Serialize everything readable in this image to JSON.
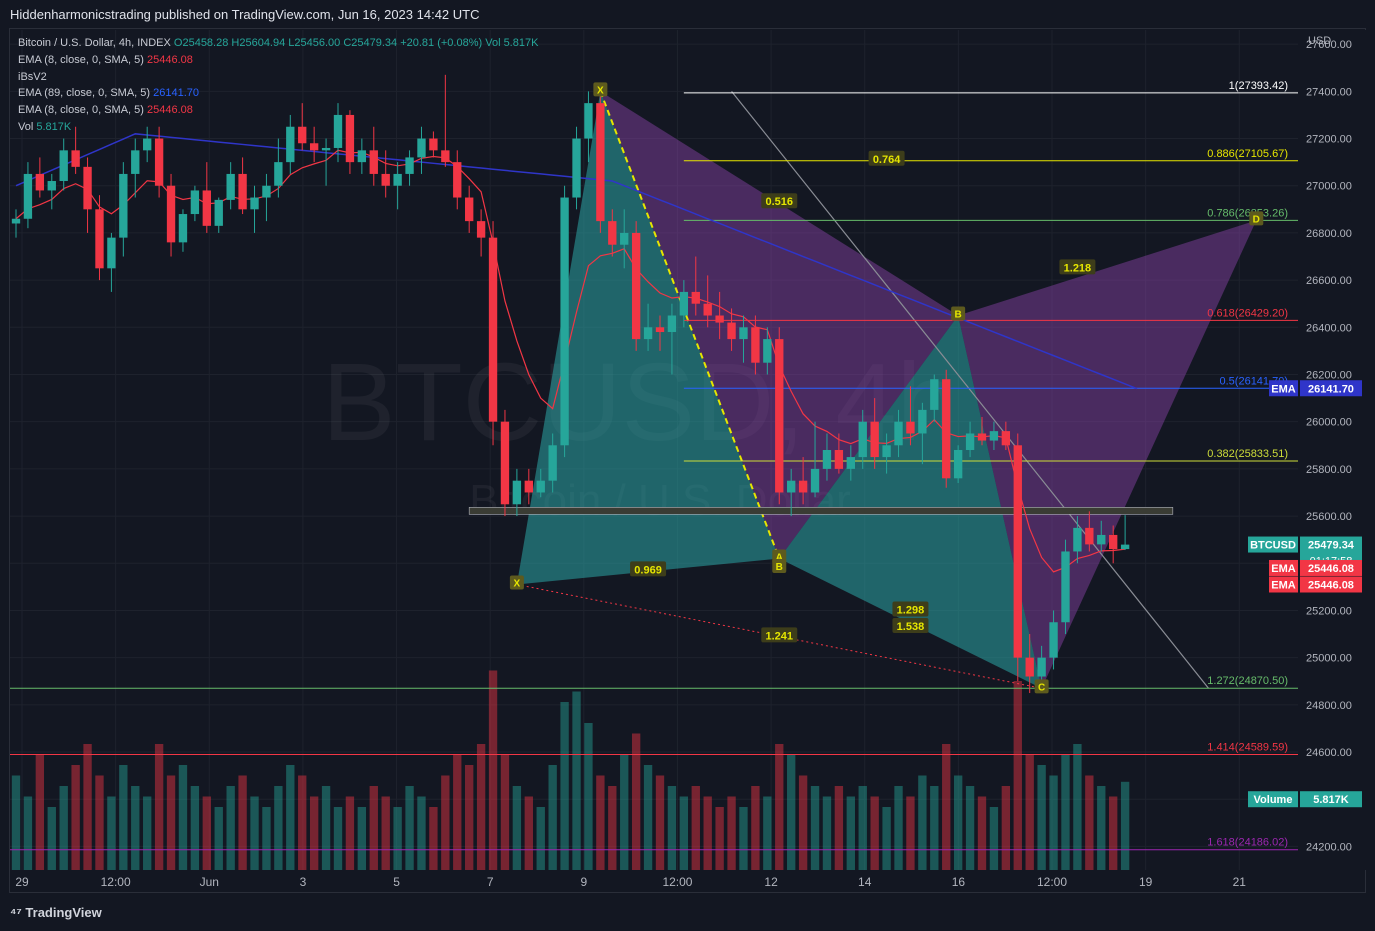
{
  "header": {
    "published": "Hiddenharmonicstrading published on TradingView.com, Jun 16, 2023 14:42 UTC"
  },
  "legend": {
    "symbol": "Bitcoin / U.S. Dollar, 4h, INDEX",
    "ohlc": "O25458.28 H25604.94 L25456.00 C25479.34 +20.81 (+0.08%) Vol 5.817K",
    "ema8_label": "EMA (8, close, 0, SMA, 5)",
    "ema8_value": "25446.08",
    "ibs": "iBsV2",
    "ema89_label": "EMA (89, close, 0, SMA, 5)",
    "ema89_value": "26141.70",
    "ema8b_label": "EMA (8, close, 0, SMA, 5)",
    "ema8b_value": "25446.08",
    "vol_label": "Vol",
    "vol_value": "5.817K"
  },
  "footer": {
    "brand": "TradingView"
  },
  "watermark": {
    "big": "BTCUSD, 4h",
    "small": "Bitcoin / U.S. Dollar"
  },
  "colors": {
    "up": "#26a69a",
    "down": "#f23645",
    "bg": "#131722",
    "grid": "#1e222d",
    "ema89": "#2f35c9",
    "ema8": "#f23645",
    "pattern_purple": "#8e44ad",
    "pattern_teal": "#2ba6a6"
  },
  "chart_data": {
    "type": "candlestick",
    "currency": "USD",
    "y_ticks": [
      24200,
      24400,
      24600,
      24800,
      25000,
      25200,
      25400,
      25600,
      25800,
      26000,
      26200,
      26400,
      26600,
      26800,
      27000,
      27200,
      27400,
      27600
    ],
    "x_ticks": [
      "29",
      "12:00",
      "Jun",
      "3",
      "5",
      "7",
      "9",
      "12:00",
      "12",
      "14",
      "16",
      "12:00",
      "19",
      "21"
    ],
    "candles": [
      [
        26840,
        26900,
        26780,
        26860
      ],
      [
        26860,
        27100,
        26820,
        27050
      ],
      [
        27050,
        27120,
        26950,
        26980
      ],
      [
        26980,
        27050,
        26900,
        27020
      ],
      [
        27020,
        27200,
        26980,
        27150
      ],
      [
        27150,
        27250,
        27050,
        27080
      ],
      [
        27080,
        27120,
        26800,
        26900
      ],
      [
        26900,
        26960,
        26600,
        26650
      ],
      [
        26650,
        26800,
        26550,
        26780
      ],
      [
        26780,
        27100,
        26700,
        27050
      ],
      [
        27050,
        27200,
        26950,
        27150
      ],
      [
        27150,
        27250,
        27100,
        27200
      ],
      [
        27200,
        27250,
        26950,
        27000
      ],
      [
        27000,
        27050,
        26700,
        26760
      ],
      [
        26760,
        26900,
        26720,
        26880
      ],
      [
        26880,
        27000,
        26850,
        26980
      ],
      [
        26980,
        27100,
        26800,
        26830
      ],
      [
        26830,
        26950,
        26800,
        26940
      ],
      [
        26940,
        27100,
        26900,
        27050
      ],
      [
        27050,
        27120,
        26880,
        26900
      ],
      [
        26900,
        27000,
        26800,
        26950
      ],
      [
        26950,
        27050,
        26850,
        27000
      ],
      [
        27000,
        27200,
        26950,
        27100
      ],
      [
        27100,
        27300,
        27050,
        27250
      ],
      [
        27250,
        27350,
        27150,
        27180
      ],
      [
        27180,
        27250,
        27100,
        27150
      ],
      [
        27150,
        27200,
        27000,
        27160
      ],
      [
        27160,
        27350,
        27100,
        27300
      ],
      [
        27300,
        27320,
        27050,
        27100
      ],
      [
        27100,
        27200,
        27050,
        27150
      ],
      [
        27150,
        27250,
        27000,
        27050
      ],
      [
        27050,
        27150,
        26950,
        27000
      ],
      [
        27000,
        27100,
        26900,
        27050
      ],
      [
        27050,
        27150,
        27000,
        27120
      ],
      [
        27120,
        27250,
        27050,
        27200
      ],
      [
        27200,
        27230,
        27120,
        27150
      ],
      [
        27150,
        27470,
        27080,
        27100
      ],
      [
        27100,
        27150,
        26900,
        26950
      ],
      [
        26950,
        27000,
        26800,
        26850
      ],
      [
        26850,
        26900,
        26700,
        26780
      ],
      [
        26780,
        26850,
        25900,
        26000
      ],
      [
        26000,
        26050,
        25600,
        25650
      ],
      [
        25650,
        25800,
        25600,
        25750
      ],
      [
        25750,
        25800,
        25650,
        25700
      ],
      [
        25700,
        25800,
        25680,
        25750
      ],
      [
        25750,
        25950,
        25700,
        25900
      ],
      [
        25900,
        27000,
        25850,
        26950
      ],
      [
        26950,
        27250,
        26900,
        27200
      ],
      [
        27200,
        27400,
        27100,
        27350
      ],
      [
        27350,
        27380,
        26800,
        26850
      ],
      [
        26850,
        26900,
        26700,
        26750
      ],
      [
        26750,
        26900,
        26650,
        26800
      ],
      [
        26800,
        26850,
        26300,
        26350
      ],
      [
        26350,
        26500,
        26300,
        26400
      ],
      [
        26400,
        26450,
        26300,
        26380
      ],
      [
        26380,
        26500,
        26200,
        26450
      ],
      [
        26450,
        26600,
        26400,
        26550
      ],
      [
        26550,
        26700,
        26450,
        26500
      ],
      [
        26500,
        26620,
        26400,
        26450
      ],
      [
        26450,
        26550,
        26350,
        26420
      ],
      [
        26420,
        26480,
        26300,
        26350
      ],
      [
        26350,
        26450,
        26250,
        26400
      ],
      [
        26400,
        26450,
        26200,
        26250
      ],
      [
        26250,
        26400,
        26200,
        26350
      ],
      [
        26350,
        26400,
        25650,
        25700
      ],
      [
        25700,
        25800,
        25600,
        25750
      ],
      [
        25750,
        25850,
        25650,
        25700
      ],
      [
        25700,
        26000,
        25680,
        25800
      ],
      [
        25800,
        25950,
        25750,
        25880
      ],
      [
        25880,
        25950,
        25780,
        25800
      ],
      [
        25800,
        25900,
        25750,
        25850
      ],
      [
        25850,
        26050,
        25800,
        26000
      ],
      [
        26000,
        26100,
        25800,
        25850
      ],
      [
        25850,
        25950,
        25780,
        25900
      ],
      [
        25900,
        26050,
        25850,
        26000
      ],
      [
        26000,
        26150,
        25900,
        25950
      ],
      [
        25950,
        26080,
        25820,
        26050
      ],
      [
        26050,
        26200,
        26000,
        26180
      ],
      [
        26180,
        26220,
        25720,
        25760
      ],
      [
        25760,
        25900,
        25740,
        25880
      ],
      [
        25880,
        26000,
        25850,
        25950
      ],
      [
        25950,
        26020,
        25900,
        25920
      ],
      [
        25920,
        26000,
        25880,
        25960
      ],
      [
        25960,
        26000,
        25880,
        25900
      ],
      [
        25900,
        25950,
        24900,
        25000
      ],
      [
        25000,
        25100,
        24850,
        24920
      ],
      [
        24920,
        25050,
        24880,
        25000
      ],
      [
        25000,
        25200,
        24950,
        25150
      ],
      [
        25150,
        25500,
        25100,
        25450
      ],
      [
        25450,
        25600,
        25400,
        25550
      ],
      [
        25550,
        25620,
        25450,
        25480
      ],
      [
        25480,
        25580,
        25450,
        25520
      ],
      [
        25520,
        25560,
        25400,
        25460
      ],
      [
        25460,
        25604,
        25456,
        25479
      ]
    ],
    "volumes": [
      0.45,
      0.35,
      0.55,
      0.3,
      0.4,
      0.5,
      0.6,
      0.45,
      0.35,
      0.5,
      0.4,
      0.35,
      0.6,
      0.45,
      0.5,
      0.4,
      0.35,
      0.3,
      0.4,
      0.45,
      0.35,
      0.3,
      0.4,
      0.5,
      0.45,
      0.35,
      0.4,
      0.3,
      0.35,
      0.3,
      0.4,
      0.35,
      0.3,
      0.4,
      0.35,
      0.3,
      0.45,
      0.55,
      0.5,
      0.6,
      0.95,
      0.55,
      0.4,
      0.35,
      0.3,
      0.5,
      0.8,
      0.85,
      0.7,
      0.45,
      0.4,
      0.55,
      0.65,
      0.5,
      0.45,
      0.4,
      0.35,
      0.4,
      0.35,
      0.3,
      0.35,
      0.3,
      0.4,
      0.35,
      0.6,
      0.55,
      0.45,
      0.4,
      0.35,
      0.4,
      0.35,
      0.4,
      0.35,
      0.3,
      0.4,
      0.35,
      0.45,
      0.4,
      0.6,
      0.45,
      0.4,
      0.35,
      0.3,
      0.4,
      0.9,
      0.55,
      0.5,
      0.45,
      0.55,
      0.6,
      0.45,
      0.4,
      0.35,
      0.42
    ],
    "fib_levels": [
      {
        "label": "1(27393.42)",
        "price": 27393.42,
        "color": "#ffffff"
      },
      {
        "label": "0.886(27105.67)",
        "price": 27105.67,
        "color": "#e6e600"
      },
      {
        "label": "0.786(26853.26)",
        "price": 26853.26,
        "color": "#66bb6a"
      },
      {
        "label": "0.618(26429.20)",
        "price": 26429.2,
        "color": "#f23645"
      },
      {
        "label": "0.5(26141.70)",
        "price": 26141.7,
        "color": "#2962ff"
      },
      {
        "label": "0.382(25833.51)",
        "price": 25833.51,
        "color": "#cddc39"
      },
      {
        "label": "1.272(24870.50)",
        "price": 24870.5,
        "color": "#66bb6a"
      },
      {
        "label": "1.414(24589.59)",
        "price": 24589.59,
        "color": "#f23645"
      },
      {
        "label": "1.618(24186.02)",
        "price": 24186.02,
        "color": "#9c27b0"
      }
    ],
    "pattern_labels": [
      {
        "text": "X",
        "idx": 49,
        "price": 27400
      },
      {
        "text": "A",
        "idx": 64,
        "price": 25420
      },
      {
        "text": "B",
        "idx": 79,
        "price": 26450
      },
      {
        "text": "C",
        "idx": 86,
        "price": 24870
      },
      {
        "text": "D",
        "idx": 104,
        "price": 26853
      },
      {
        "text": "X",
        "idx": 42,
        "price": 25310
      },
      {
        "text": "B",
        "idx": 64,
        "price": 25380
      }
    ],
    "ratio_labels": [
      {
        "text": "0.764",
        "idx": 73,
        "price": 27110
      },
      {
        "text": "0.516",
        "idx": 64,
        "price": 26930
      },
      {
        "text": "1.218",
        "idx": 89,
        "price": 26650
      },
      {
        "text": "1.298",
        "idx": 75,
        "price": 25200
      },
      {
        "text": "0.969",
        "idx": 53,
        "price": 25370
      },
      {
        "text": "1.241",
        "idx": 64,
        "price": 25090
      },
      {
        "text": "1.538",
        "idx": 75,
        "price": 25130
      }
    ],
    "price_tags": [
      {
        "label": "EMA",
        "value": "26141.70",
        "color": "#2f35c9"
      },
      {
        "label": "BTCUSD",
        "value": "25479.34",
        "sub": "01:17:58",
        "color": "#26a69a"
      },
      {
        "label": "EMA",
        "value": "25446.08",
        "color": "#f23645"
      },
      {
        "label": "EMA",
        "value": "25446.08",
        "color": "#f23645"
      },
      {
        "label": "Volume",
        "value": "5.817K",
        "color": "#26a69a"
      }
    ]
  }
}
